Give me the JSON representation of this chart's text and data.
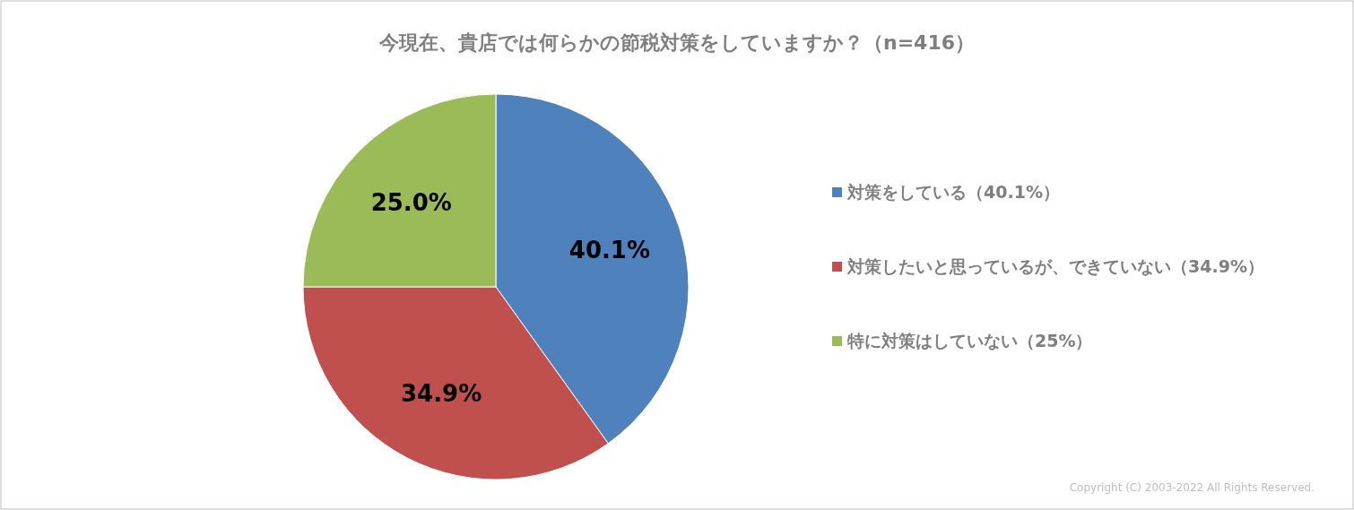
{
  "chart_data": {
    "type": "pie",
    "title": "今現在、貴店では何らかの節税対策をしていますか？（n=416）",
    "categories": [
      "対策をしている（40.1%）",
      "対策したいと思っているが、できていない（34.9%）",
      "特に対策はしていない（25%）"
    ],
    "values": [
      40.1,
      34.9,
      25.0
    ],
    "colors": [
      "#4f81bd",
      "#c0504d",
      "#9bbb59"
    ],
    "value_labels": [
      "40.1%",
      "34.9%",
      "25.0%"
    ],
    "legend": "right",
    "annotations": [
      "Copyright (C) 2003-2022 All Rights Reserved."
    ]
  }
}
